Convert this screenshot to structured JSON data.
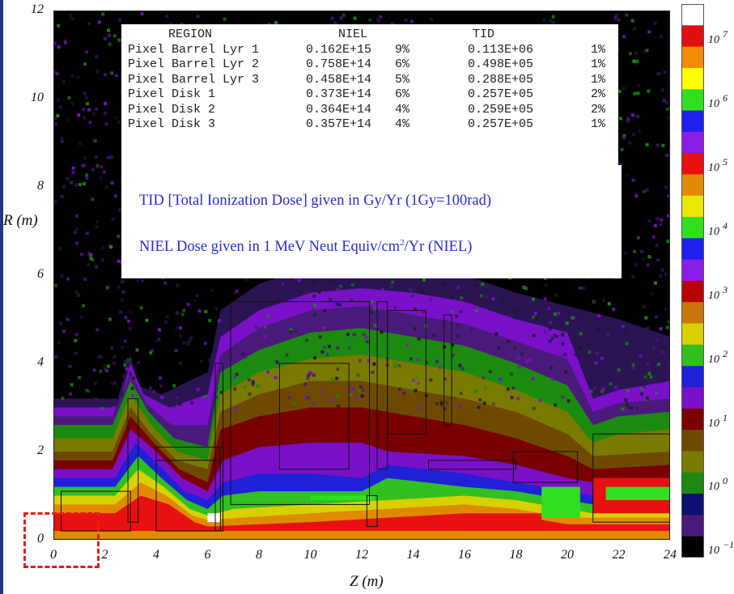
{
  "chart_data": {
    "type": "heatmap",
    "xlabel": "Z (m)",
    "ylabel": "R (m)",
    "xlim": [
      0,
      24
    ],
    "ylim": [
      0,
      12
    ],
    "x_ticks": [
      "0",
      "2",
      "4",
      "6",
      "8",
      "10",
      "12",
      "14",
      "16",
      "18",
      "20",
      "22",
      "24"
    ],
    "y_ticks": [
      "0",
      "2",
      "4",
      "6",
      "8",
      "10",
      "12"
    ],
    "colorbar": {
      "scale": "log",
      "colors": [
        "#ffffff",
        "#e01010",
        "#f08c00",
        "#ffff00",
        "#30e020",
        "#2020f0",
        "#8a1ee8",
        "#e81010",
        "#e08a00",
        "#e8e800",
        "#30e020",
        "#2020f0",
        "#8a1ee8",
        "#b80000",
        "#c8780a",
        "#d8d000",
        "#30c020",
        "#2020d8",
        "#7a10c8",
        "#7a0000",
        "#6e4a00",
        "#7a7a00",
        "#1c8a10",
        "#0c1070",
        "#4a1a7a",
        "#000000"
      ],
      "tick_labels": [
        {
          "base": "10",
          "exp": "7"
        },
        {
          "base": "10",
          "exp": "6"
        },
        {
          "base": "10",
          "exp": "5"
        },
        {
          "base": "10",
          "exp": "4"
        },
        {
          "base": "10",
          "exp": "3"
        },
        {
          "base": "10",
          "exp": "2"
        },
        {
          "base": "10",
          "exp": "1"
        },
        {
          "base": "10",
          "exp": "0"
        },
        {
          "base": "10",
          "exp": "−1"
        }
      ]
    },
    "dose_table": {
      "headers": {
        "region": "REGION",
        "niel": "NIEL",
        "tid": "TID"
      },
      "rows": [
        {
          "region": "Pixel Barrel Lyr 1",
          "niel": "0.162E+15",
          "niel_pct": "9%",
          "tid": "0.113E+06",
          "tid_pct": "1%"
        },
        {
          "region": "Pixel Barrel Lyr 2",
          "niel": "0.758E+14",
          "niel_pct": "6%",
          "tid": "0.498E+05",
          "tid_pct": "1%"
        },
        {
          "region": "Pixel Barrel Lyr 3",
          "niel": "0.458E+14",
          "niel_pct": "5%",
          "tid": "0.288E+05",
          "tid_pct": "1%"
        },
        {
          "region": "Pixel Disk 1",
          "niel": "0.373E+14",
          "niel_pct": "6%",
          "tid": "0.257E+05",
          "tid_pct": "2%"
        },
        {
          "region": "Pixel Disk 2",
          "niel": "0.364E+14",
          "niel_pct": "4%",
          "tid": "0.259E+05",
          "tid_pct": "2%"
        },
        {
          "region": "Pixel Disk 3",
          "niel": "0.357E+14",
          "niel_pct": "4%",
          "tid": "0.257E+05",
          "tid_pct": "1%"
        }
      ]
    },
    "annotations": {
      "tid_note": "TID [Total Ionization Dose] given in Gy/Yr   (1Gy=100rad)",
      "niel_note_pre": "NIEL Dose given in 1 MeV Neut Equiv/cm",
      "niel_note_sup": "2",
      "niel_note_post": "/Yr (NIEL)"
    },
    "highlight": {
      "description_zone_z": [
        0,
        2
      ],
      "description_zone_r": [
        0,
        1
      ]
    }
  }
}
